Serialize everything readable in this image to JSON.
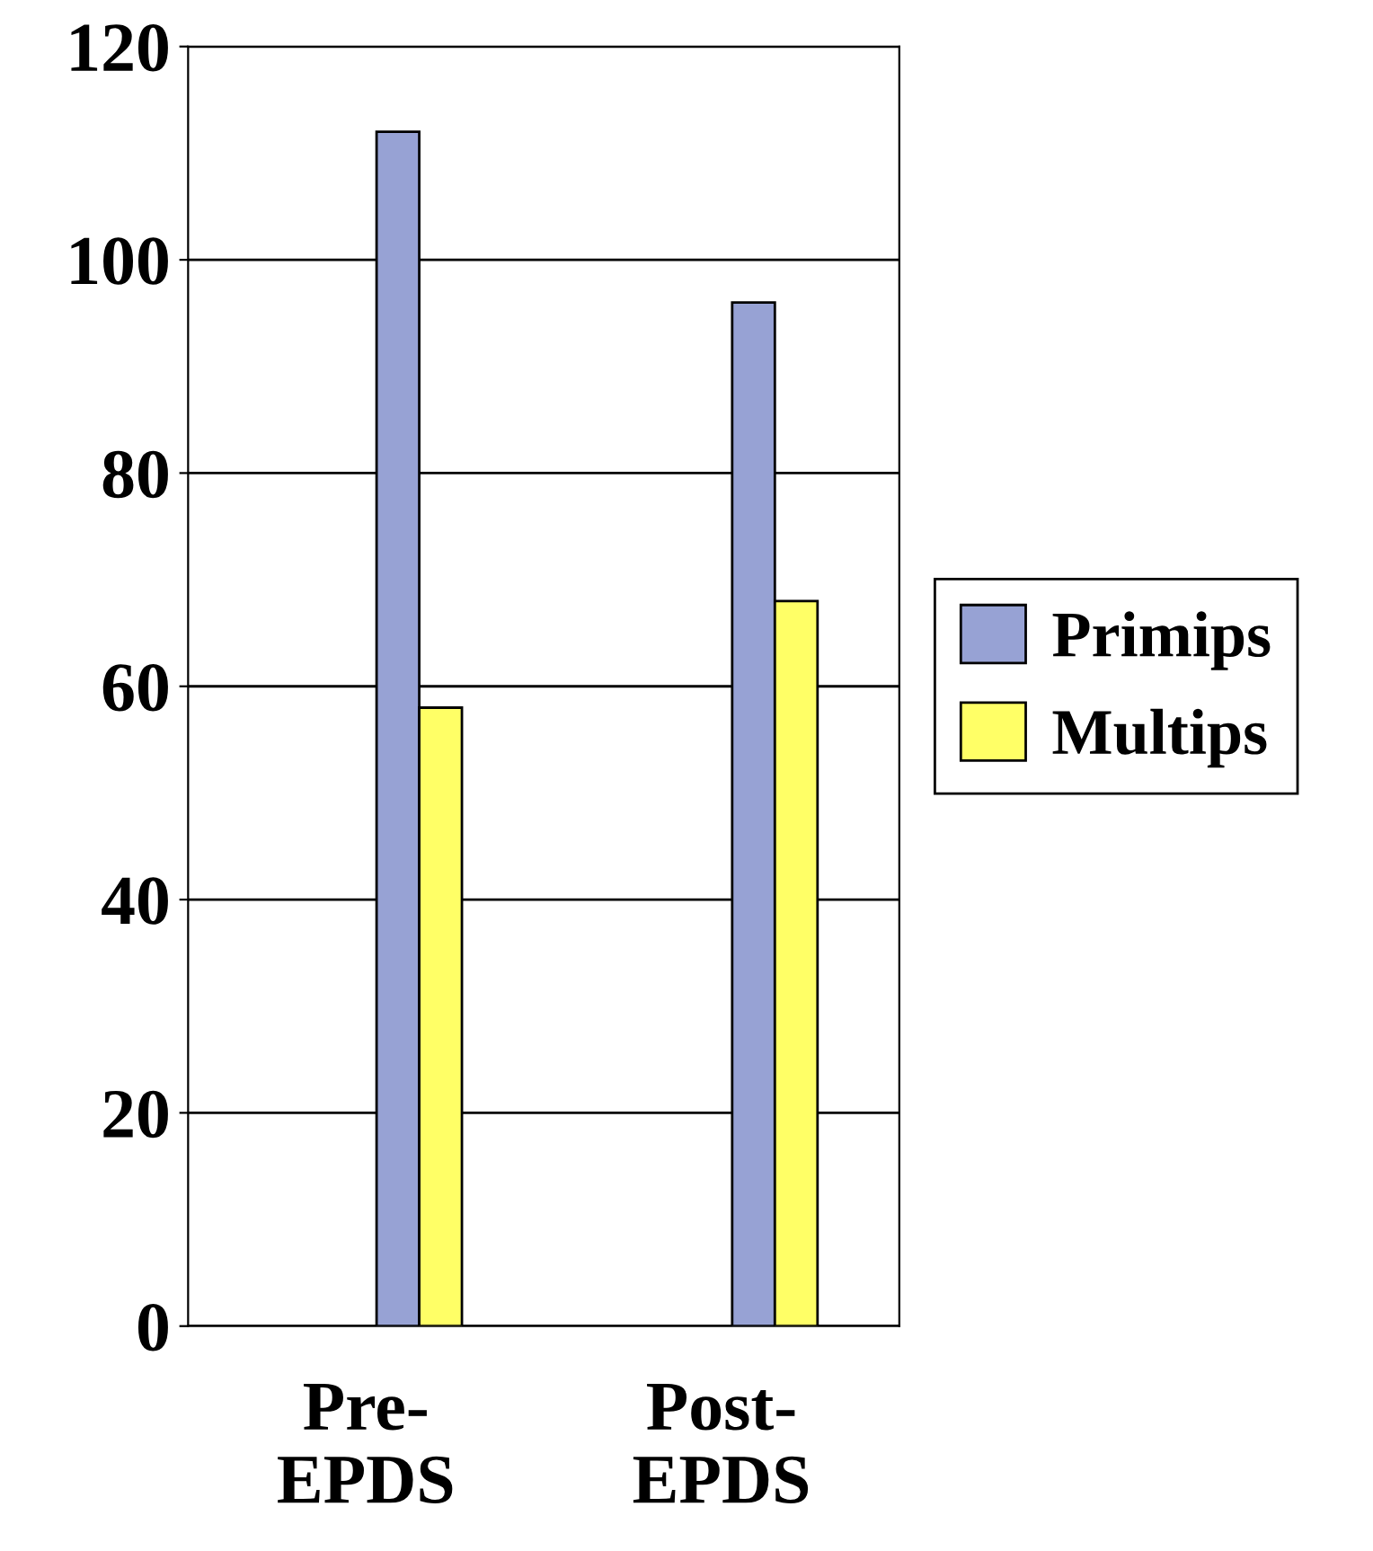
{
  "chart_data": {
    "type": "bar",
    "categories": [
      "Pre-\nEPDS",
      "Post-\nEPDS"
    ],
    "series": [
      {
        "name": "Primips",
        "color": "#97a2d4",
        "values": [
          112,
          96
        ]
      },
      {
        "name": "Multips",
        "color": "#ffff66",
        "values": [
          58,
          68
        ]
      }
    ],
    "ylim": [
      0,
      120
    ],
    "yticks": [
      0,
      20,
      40,
      60,
      80,
      100,
      120
    ],
    "grid": "y",
    "legend": "right"
  }
}
